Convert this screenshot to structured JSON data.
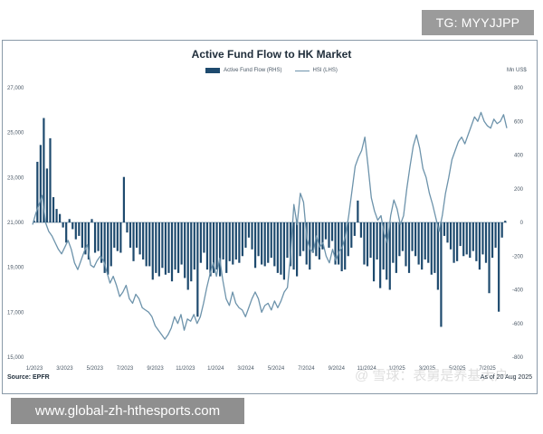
{
  "watermark_top": "TG: MYYJJPP",
  "watermark_bottom": "www.global-zh-hthesports.com",
  "watermark_center": "@ 雪球：表舅是养基大户",
  "chart_data": {
    "type": "bar",
    "title": "Active Fund Flow to HK Market",
    "legend": [
      "Active Fund Flow (RHS)",
      "HSI (LHS)"
    ],
    "right_unit_label": "Mn US$",
    "left_axis": {
      "range": [
        15000,
        27000
      ],
      "ticks": [
        "15,000",
        "17,000",
        "19,000",
        "21,000",
        "23,000",
        "25,000",
        "27,000"
      ]
    },
    "right_axis": {
      "range": [
        -800,
        800
      ],
      "ticks": [
        "-800",
        "-600",
        "-400",
        "-200",
        "0",
        "200",
        "400",
        "600",
        "800"
      ]
    },
    "x_tick_labels": [
      "1/2023",
      "3/2023",
      "5/2023",
      "7/2023",
      "9/2023",
      "11/2023",
      "1/2024",
      "3/2024",
      "5/2024",
      "7/2024",
      "9/2024",
      "11/2024",
      "1/2025",
      "3/2025",
      "5/2025",
      "7/2025"
    ],
    "source": "Source: EPFR",
    "as_of": "As of 20 Aug 2025",
    "series": [
      {
        "name": "Active Fund Flow (RHS)",
        "type": "bar",
        "values": [
          10,
          360,
          460,
          620,
          320,
          500,
          150,
          80,
          50,
          -30,
          -120,
          20,
          -40,
          -100,
          -80,
          -150,
          -190,
          -220,
          20,
          -180,
          -170,
          -240,
          -300,
          -310,
          -260,
          -150,
          -170,
          -180,
          270,
          -60,
          -150,
          -230,
          -150,
          -190,
          -220,
          -260,
          -260,
          -340,
          -300,
          -320,
          -270,
          -310,
          -300,
          -350,
          -280,
          -300,
          -250,
          -330,
          -400,
          -350,
          -280,
          -560,
          -240,
          -180,
          -280,
          -320,
          -300,
          -280,
          -320,
          -220,
          -300,
          -230,
          -250,
          -220,
          -240,
          -200,
          -150,
          -90,
          -160,
          -270,
          -200,
          -250,
          -260,
          -240,
          -210,
          -260,
          -300,
          -310,
          -340,
          -210,
          -260,
          -280,
          -320,
          -200,
          -170,
          -250,
          -280,
          -180,
          -200,
          -220,
          -160,
          -100,
          -150,
          -110,
          -250,
          -250,
          -290,
          -280,
          -200,
          -150,
          -80,
          130,
          -90,
          -250,
          -260,
          -210,
          -350,
          -220,
          -390,
          -280,
          -340,
          -400,
          -240,
          -300,
          -200,
          -170,
          -260,
          -300,
          -170,
          -200,
          -250,
          -280,
          -220,
          -240,
          -310,
          -300,
          -400,
          -620,
          -80,
          -120,
          -160,
          -240,
          -230,
          -140,
          -200,
          -190,
          -210,
          -170,
          -230,
          -280,
          -190,
          -240,
          -420,
          -210,
          -150,
          -530,
          -90,
          10
        ]
      },
      {
        "name": "HSI (LHS)",
        "type": "line",
        "values": [
          20900,
          21400,
          21800,
          22200,
          21000,
          20600,
          20400,
          20100,
          19800,
          19600,
          19900,
          20200,
          19800,
          19200,
          18900,
          19300,
          19700,
          20000,
          19100,
          19000,
          19300,
          19500,
          19300,
          18800,
          18300,
          18600,
          18200,
          17700,
          17900,
          18200,
          17600,
          17400,
          17800,
          17600,
          17200,
          17100,
          17000,
          16800,
          16400,
          16200,
          16000,
          15800,
          16000,
          16300,
          16800,
          16500,
          16900,
          16200,
          16700,
          16600,
          16900,
          16500,
          16800,
          17400,
          18100,
          18700,
          19200,
          18600,
          19400,
          18400,
          17600,
          17300,
          17900,
          17400,
          17200,
          17100,
          16800,
          17200,
          17600,
          17900,
          17600,
          17000,
          17300,
          17400,
          17100,
          17500,
          17200,
          17500,
          17900,
          18100,
          19600,
          21800,
          20900,
          22300,
          21900,
          20300,
          19800,
          19700,
          20400,
          19900,
          20100,
          19500,
          19200,
          19800,
          19300,
          19700,
          19900,
          20400,
          21300,
          22400,
          23500,
          23900,
          24200,
          24800,
          23500,
          22100,
          21500,
          21100,
          21300,
          20500,
          20100,
          21300,
          22000,
          21600,
          20900,
          21300,
          22500,
          23500,
          24400,
          24900,
          24300,
          23400,
          23000,
          22300,
          21800,
          21200,
          20600,
          21300,
          22300,
          23000,
          23800,
          24200,
          24600,
          24800,
          24500,
          24900,
          25300,
          25700,
          25500,
          25900,
          25500,
          25300,
          25200,
          25600,
          25400,
          25500,
          25800,
          25200
        ]
      }
    ]
  }
}
